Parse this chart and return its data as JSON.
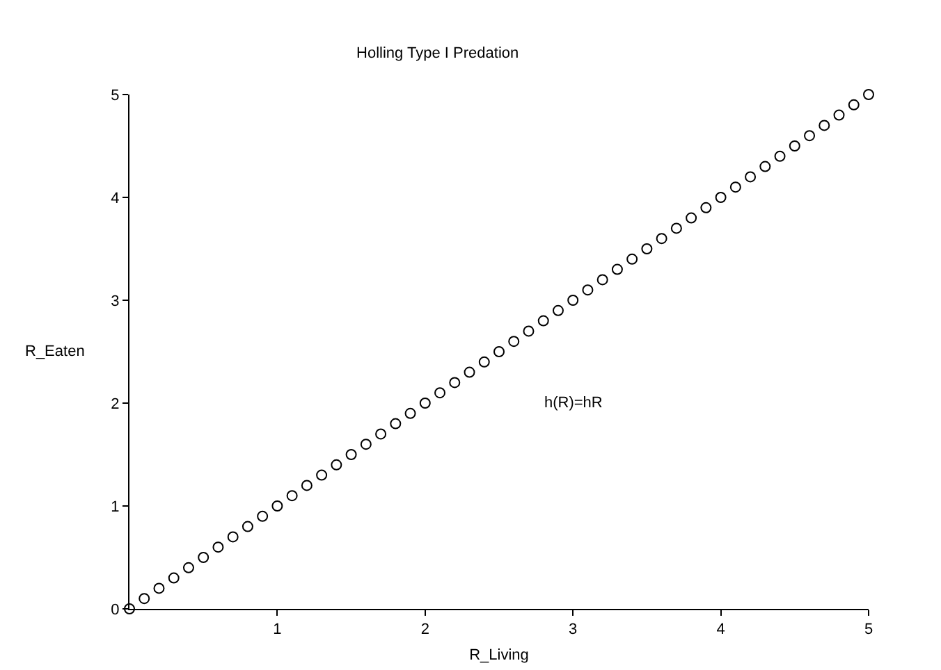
{
  "chart_data": {
    "type": "scatter",
    "title": "Holling Type I Predation",
    "xlabel": "R_Living",
    "ylabel": "R_Eaten",
    "x": [
      0,
      0.1,
      0.2,
      0.3,
      0.4,
      0.5,
      0.6,
      0.7,
      0.8,
      0.9,
      1,
      1.1,
      1.2,
      1.3,
      1.4,
      1.5,
      1.6,
      1.7,
      1.8,
      1.9,
      2,
      2.1,
      2.2,
      2.3,
      2.4,
      2.5,
      2.6,
      2.7,
      2.8,
      2.9,
      3,
      3.1,
      3.2,
      3.3,
      3.4,
      3.5,
      3.6,
      3.7,
      3.8,
      3.9,
      4,
      4.1,
      4.2,
      4.3,
      4.4,
      4.5,
      4.6,
      4.7,
      4.8,
      4.9,
      5
    ],
    "series": [
      {
        "color": "#000000",
        "values": [
          0,
          0.1,
          0.2,
          0.3,
          0.4,
          0.5,
          0.6,
          0.7,
          0.8,
          0.9,
          1,
          1.1,
          1.2,
          1.3,
          1.4,
          1.5,
          1.6,
          1.7,
          1.8,
          1.9,
          2,
          2.1,
          2.2,
          2.3,
          2.4,
          2.5,
          2.6,
          2.7,
          2.8,
          2.9,
          3,
          3.1,
          3.2,
          3.3,
          3.4,
          3.5,
          3.6,
          3.7,
          3.8,
          3.9,
          4,
          4.1,
          4.2,
          4.3,
          4.4,
          4.5,
          4.6,
          4.7,
          4.8,
          4.9,
          5
        ]
      }
    ],
    "annotations": [
      "h(R)=hR"
    ],
    "xlim": [
      0,
      5
    ],
    "ylim": [
      0,
      5
    ],
    "xticks": [
      1,
      2,
      3,
      4,
      5
    ],
    "yticks": [
      0,
      1,
      2,
      3,
      4,
      5
    ],
    "marker": "circle"
  }
}
